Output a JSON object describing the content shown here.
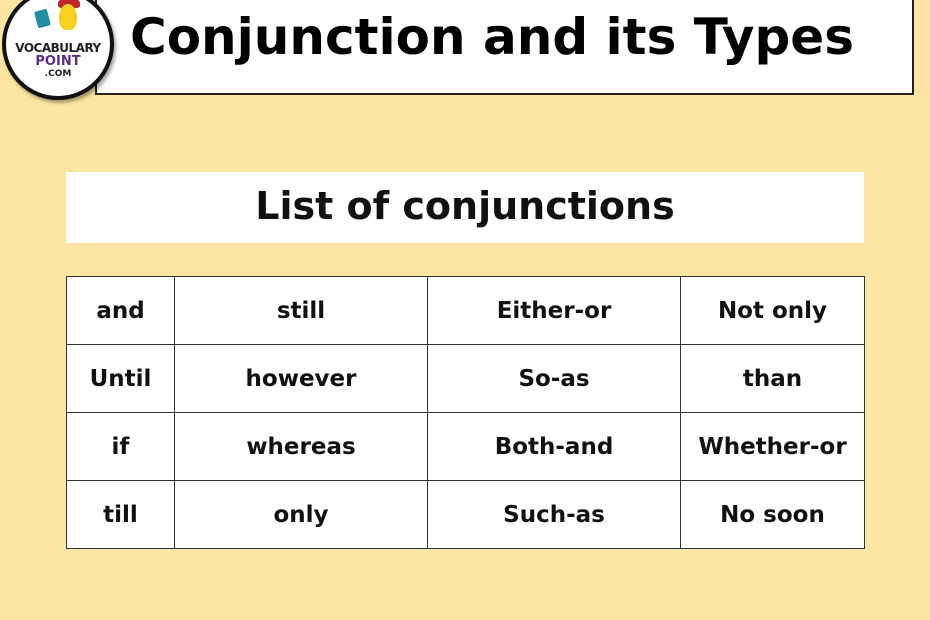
{
  "logo": {
    "line1": "VOCABULARY",
    "line2": "POINT",
    "line3": ".COM"
  },
  "header": {
    "title": "Conjunction and its Types"
  },
  "subtitle": "List of conjunctions",
  "table": {
    "rows": [
      [
        "and",
        "still",
        "Either-or",
        "Not only"
      ],
      [
        "Until",
        "however",
        "So-as",
        "than"
      ],
      [
        "if",
        "whereas",
        "Both-and",
        "Whether-or"
      ],
      [
        "till",
        "only",
        "Such-as",
        "No soon"
      ]
    ]
  },
  "colors": {
    "background": "#fde6a3",
    "panel": "#ffffff",
    "text": "#111111",
    "logo_accent": "#5a2d82"
  }
}
